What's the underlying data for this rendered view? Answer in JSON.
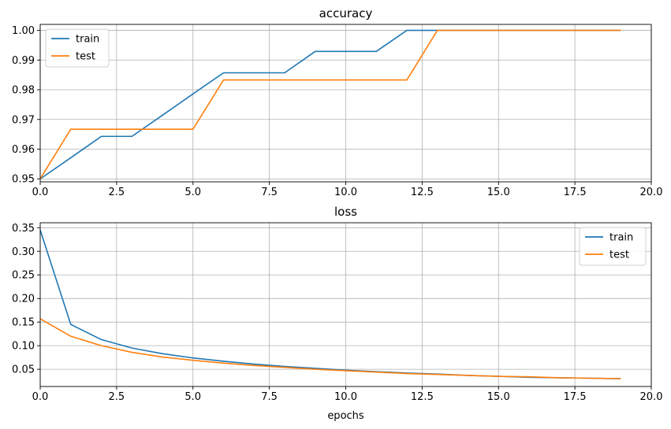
{
  "chart_data": [
    {
      "type": "line",
      "title": "accuracy",
      "xlabel": "",
      "ylabel": "",
      "xlim": [
        0,
        20
      ],
      "ylim": [
        0.949,
        1.002
      ],
      "xticks": [
        0,
        2.5,
        5,
        7.5,
        10,
        12.5,
        15,
        17.5,
        20
      ],
      "xtick_labels": [
        "0.0",
        "2.5",
        "5.0",
        "7.5",
        "10.0",
        "12.5",
        "15.0",
        "17.5",
        "20.0"
      ],
      "yticks": [
        0.95,
        0.96,
        0.97,
        0.98,
        0.99,
        1.0
      ],
      "ytick_labels": [
        "0.95",
        "0.96",
        "0.97",
        "0.98",
        "0.99",
        "1.00"
      ],
      "grid": true,
      "legend_position": "top-left",
      "series": [
        {
          "name": "train",
          "color": "#1f77b4",
          "x": [
            0,
            1,
            2,
            3,
            4,
            5,
            6,
            7,
            8,
            9,
            10,
            11,
            12,
            13,
            14,
            15,
            16,
            17,
            18,
            19
          ],
          "values": [
            0.95,
            0.9571,
            0.9643,
            0.9643,
            0.9714,
            0.9786,
            0.9857,
            0.9857,
            0.9857,
            0.9929,
            0.9929,
            0.9929,
            1.0,
            1.0,
            1.0,
            1.0,
            1.0,
            1.0,
            1.0,
            1.0
          ]
        },
        {
          "name": "test",
          "color": "#ff7f0e",
          "x": [
            0,
            1,
            2,
            3,
            4,
            5,
            6,
            7,
            8,
            9,
            10,
            11,
            12,
            13,
            14,
            15,
            16,
            17,
            18,
            19
          ],
          "values": [
            0.95,
            0.9667,
            0.9667,
            0.9667,
            0.9667,
            0.9667,
            0.9833,
            0.9833,
            0.9833,
            0.9833,
            0.9833,
            0.9833,
            0.9833,
            1.0,
            1.0,
            1.0,
            1.0,
            1.0,
            1.0,
            1.0
          ]
        }
      ]
    },
    {
      "type": "line",
      "title": "loss",
      "xlabel": "epochs",
      "ylabel": "",
      "xlim": [
        0,
        20
      ],
      "ylim": [
        0.0135,
        0.3605
      ],
      "xticks": [
        0,
        2.5,
        5,
        7.5,
        10,
        12.5,
        15,
        17.5,
        20
      ],
      "xtick_labels": [
        "0.0",
        "2.5",
        "5.0",
        "7.5",
        "10.0",
        "12.5",
        "15.0",
        "17.5",
        "20.0"
      ],
      "yticks": [
        0.05,
        0.1,
        0.15,
        0.2,
        0.25,
        0.3,
        0.35
      ],
      "ytick_labels": [
        "0.05",
        "0.10",
        "0.15",
        "0.20",
        "0.25",
        "0.30",
        "0.35"
      ],
      "grid": true,
      "legend_position": "top-right",
      "series": [
        {
          "name": "train",
          "color": "#1f77b4",
          "x": [
            0,
            1,
            2,
            3,
            4,
            5,
            6,
            7,
            8,
            9,
            10,
            11,
            12,
            13,
            14,
            15,
            16,
            17,
            18,
            19
          ],
          "values": [
            0.345,
            0.145,
            0.113,
            0.095,
            0.083,
            0.074,
            0.067,
            0.061,
            0.056,
            0.052,
            0.048,
            0.045,
            0.042,
            0.04,
            0.037,
            0.035,
            0.033,
            0.032,
            0.031,
            0.03
          ]
        },
        {
          "name": "test",
          "color": "#ff7f0e",
          "x": [
            0,
            1,
            2,
            3,
            4,
            5,
            6,
            7,
            8,
            9,
            10,
            11,
            12,
            13,
            14,
            15,
            16,
            17,
            18,
            19
          ],
          "values": [
            0.157,
            0.12,
            0.1,
            0.086,
            0.076,
            0.069,
            0.063,
            0.058,
            0.054,
            0.05,
            0.047,
            0.044,
            0.041,
            0.039,
            0.037,
            0.035,
            0.034,
            0.032,
            0.031,
            0.03
          ]
        }
      ]
    }
  ]
}
